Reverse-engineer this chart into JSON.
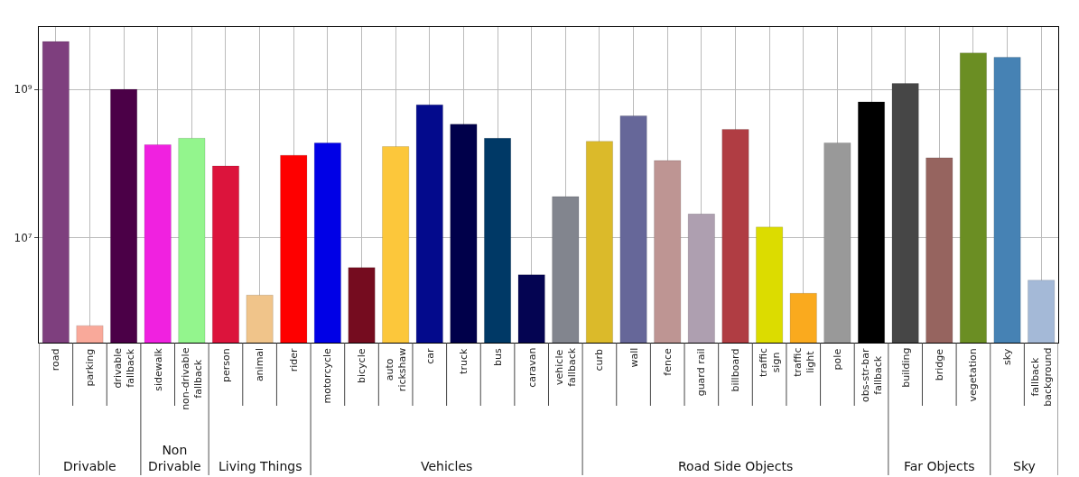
{
  "chart_data": [
    {
      "type": "bar",
      "xlabel": "Drivable",
      "categories": [
        "road",
        "parking",
        "drivable\nfallback"
      ],
      "values": [
        4400000000.0,
        660000.0,
        1000000000.0
      ],
      "colors": [
        "#7e3f7e",
        "#f9a99a",
        "#4b0047"
      ],
      "log": true,
      "ylim": [
        390000,
        6900000000
      ],
      "yticks": [
        {
          "value": 10000000,
          "label": "10⁷"
        },
        {
          "value": 1000000000,
          "label": "10⁹"
        }
      ],
      "grid": true
    },
    {
      "type": "bar",
      "xlabel": "Non\nDrivable",
      "categories": [
        "sidewalk",
        "non-drivable\nfallback"
      ],
      "values": [
        180000000.0,
        220000000.0
      ],
      "colors": [
        "#f021e0",
        "#93f58d"
      ],
      "log": true,
      "ylim": [
        390000,
        6900000000
      ],
      "grid": true,
      "tick_labels": "x"
    },
    {
      "type": "bar",
      "xlabel": "Living Things",
      "categories": [
        "person",
        "animal",
        "rider"
      ],
      "values": [
        93000000.0,
        1700000.0,
        130000000.0
      ],
      "colors": [
        "#dc143c",
        "#f0c48a",
        "#fe0000"
      ],
      "log": true,
      "ylim": [
        390000,
        6900000000
      ],
      "grid": true,
      "tick_labels": "x"
    },
    {
      "type": "bar",
      "xlabel": "Vehicles",
      "categories": [
        "motorcycle",
        "bicycle",
        "auto\nrickshaw",
        "car",
        "truck",
        "bus",
        "caravan",
        "vehicle\nfallback"
      ],
      "values": [
        190000000.0,
        4000000.0,
        170000000.0,
        620000000.0,
        340000000.0,
        220000000.0,
        3200000.0,
        36000000.0
      ],
      "colors": [
        "#0000e6",
        "#750c1f",
        "#fcc73b",
        "#030a8c",
        "#00004a",
        "#003966",
        "#040452",
        "#82858e"
      ],
      "log": true,
      "ylim": [
        390000,
        6900000000
      ],
      "grid": true,
      "tick_labels": "x"
    },
    {
      "type": "bar",
      "xlabel": "Road Side Objects",
      "categories": [
        "curb",
        "wall",
        "fence",
        "guard rail",
        "billboard",
        "traffic\nsign",
        "traffic\nlight",
        "pole",
        "obs-str-bar\nfallback"
      ],
      "values": [
        200000000.0,
        440000000.0,
        110000000.0,
        21000000.0,
        290000000.0,
        14000000.0,
        1800000.0,
        190000000.0,
        680000000.0
      ],
      "colors": [
        "#dbba2a",
        "#666799",
        "#be9593",
        "#ae9fb0",
        "#b03d43",
        "#dcdc00",
        "#faaa1e",
        "#999999",
        "#000000"
      ],
      "log": true,
      "ylim": [
        390000,
        6900000000
      ],
      "grid": true,
      "tick_labels": "x"
    },
    {
      "type": "bar",
      "xlabel": "Far Objects",
      "categories": [
        "building",
        "bridge",
        "vegetation"
      ],
      "values": [
        1200000000.0,
        120000000.0,
        3100000000.0
      ],
      "colors": [
        "#464646",
        "#96645f",
        "#6b8e23"
      ],
      "log": true,
      "ylim": [
        390000,
        6900000000
      ],
      "grid": true,
      "tick_labels": "x"
    },
    {
      "type": "bar",
      "xlabel": "Sky",
      "categories": [
        "sky",
        "fallback\nbackground"
      ],
      "values": [
        2700000000.0,
        2700000.0
      ],
      "colors": [
        "#4682b4",
        "#a4b9d7"
      ],
      "log": true,
      "ylim": [
        390000,
        6900000000
      ],
      "grid": true,
      "tick_labels": "x"
    }
  ]
}
